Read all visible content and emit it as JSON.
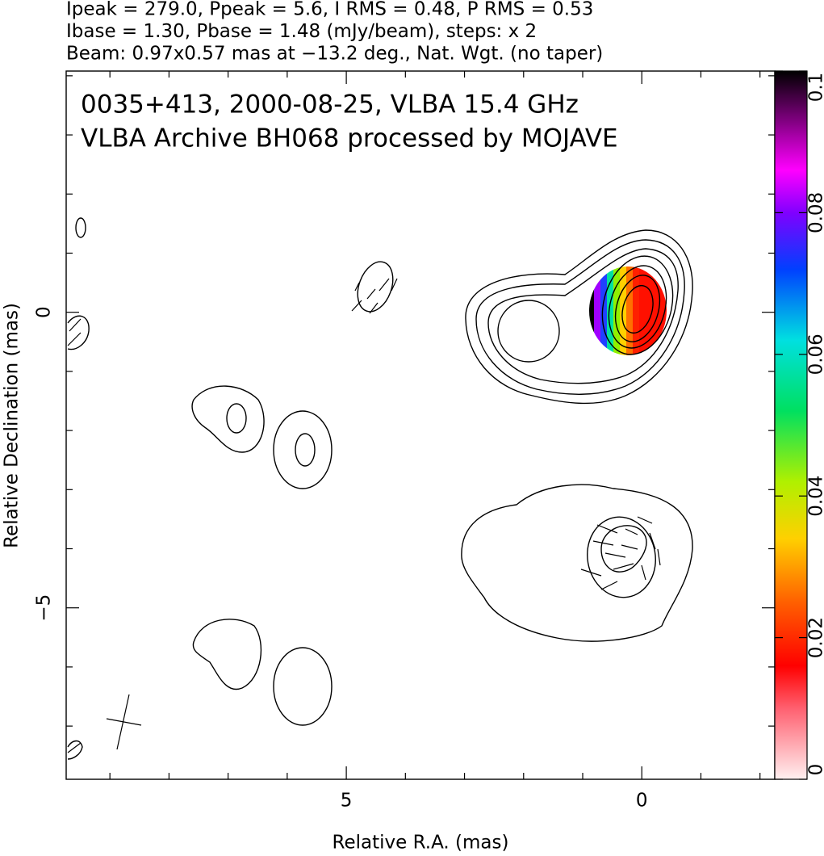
{
  "chart_data": {
    "type": "contour",
    "header": [
      "Ipeak = 279.0, Ppeak = 5.6, I RMS = 0.48, P RMS = 0.53",
      "Ibase = 1.30, Pbase = 1.48 (mJy/beam), steps: x 2",
      "Beam: 0.97x0.57 mas at −13.2 deg., Nat. Wgt. (no taper)"
    ],
    "title": [
      "0035+413, 2000-08-25, VLBA 15.4 GHz",
      "VLBA Archive BH068 processed by MOJAVE"
    ],
    "xlabel": "Relative R.A. (mas)",
    "ylabel": "Relative Declination (mas)",
    "xlim": [
      9.74,
      -2.25
    ],
    "ylim": [
      -7.9,
      4.08
    ],
    "xticks": [
      5,
      0
    ],
    "yticks": [
      0,
      {
        "value": -5,
        "label": "−5"
      }
    ],
    "xminorticks": [
      9,
      8,
      7,
      6,
      4,
      3,
      2,
      1,
      -1,
      -2
    ],
    "yminorticks": [
      4,
      3,
      2,
      1,
      -1,
      -2,
      -3,
      -4,
      -6,
      -7
    ],
    "colorbar": {
      "lim": [
        0,
        0.1
      ],
      "ticks": [
        0,
        0.02,
        0.04,
        0.06,
        0.08,
        0.1
      ]
    }
  }
}
